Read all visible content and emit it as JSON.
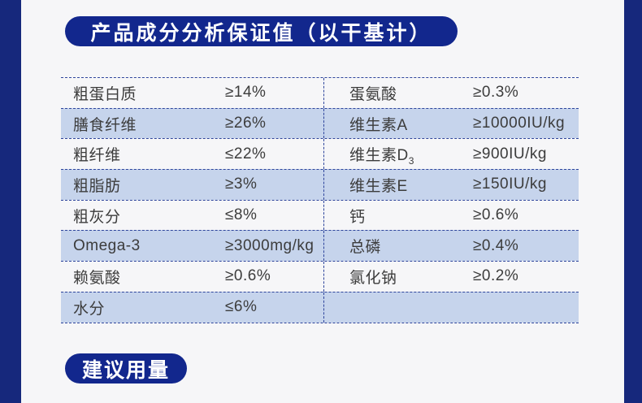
{
  "colors": {
    "page_bg": "#f6f6f8",
    "side_band": "#16287c",
    "badge_bg": "#12278d",
    "badge_text": "#ffffff",
    "row_stripe": "#c6d4ec",
    "dash": "#2e459c",
    "text": "#3c3c3c"
  },
  "header": {
    "title": "产品成分分析保证值（以干基计）"
  },
  "table": {
    "rows": [
      {
        "left": {
          "label": "粗蛋白质",
          "value": "≥14%"
        },
        "right": {
          "label": "蛋氨酸",
          "value": "≥0.3%"
        }
      },
      {
        "left": {
          "label": "膳食纤维",
          "value": "≥26%"
        },
        "right": {
          "label": "维生素A",
          "value": "≥10000IU/kg"
        }
      },
      {
        "left": {
          "label": "粗纤维",
          "value": "≤22%"
        },
        "right": {
          "label": "维生素D",
          "label_sub": "3",
          "value": "≥900IU/kg"
        }
      },
      {
        "left": {
          "label": "粗脂肪",
          "value": "≥3%"
        },
        "right": {
          "label": "维生素E",
          "value": "≥150IU/kg"
        }
      },
      {
        "left": {
          "label": "粗灰分",
          "value": "≤8%"
        },
        "right": {
          "label": "钙",
          "value": "≥0.6%"
        }
      },
      {
        "left": {
          "label": "Omega-3",
          "value": "≥3000mg/kg"
        },
        "right": {
          "label": "总磷",
          "value": "≥0.4%"
        }
      },
      {
        "left": {
          "label": "赖氨酸",
          "value": "≥0.6%"
        },
        "right": {
          "label": "氯化钠",
          "value": "≥0.2%"
        }
      },
      {
        "left": {
          "label": "水分",
          "value": "≤6%"
        },
        "right": {
          "label": "",
          "value": ""
        }
      }
    ]
  },
  "footer": {
    "title": "建议用量"
  }
}
